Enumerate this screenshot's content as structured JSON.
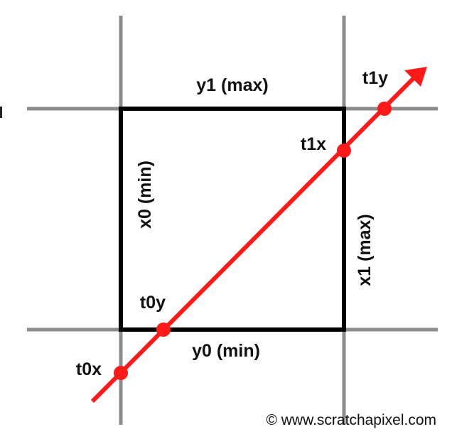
{
  "labels": {
    "y1_max": "y1 (max)",
    "y0_min": "y0 (min)",
    "x0_min": "x0 (min)",
    "x1_max": "x1 (max)",
    "t0x": "t0x",
    "t0y": "t0y",
    "t1x": "t1x",
    "t1y": "t1y"
  },
  "credit": "© www.scratchapixel.com",
  "colors": {
    "ray": "#ff1a1a",
    "box": "#000000",
    "grid": "#8c8c8c"
  }
}
